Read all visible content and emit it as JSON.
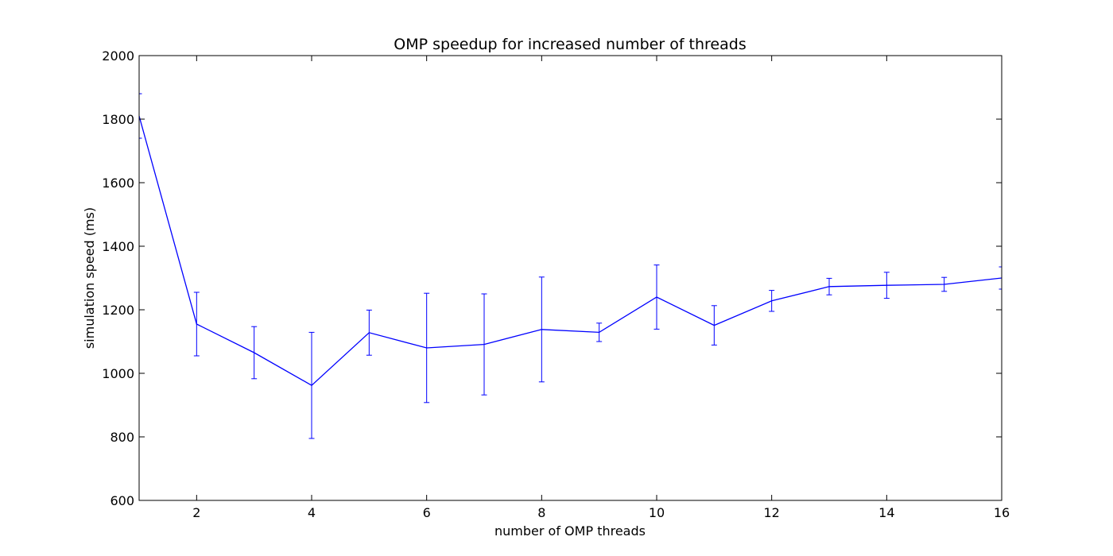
{
  "chart_data": {
    "type": "line",
    "title": "OMP speedup for increased number of threads",
    "xlabel": "number of OMP threads",
    "ylabel": "simulation speed (ms)",
    "xlim": [
      1,
      16
    ],
    "ylim": [
      600,
      2000
    ],
    "xticks": [
      2,
      4,
      6,
      8,
      10,
      12,
      14,
      16
    ],
    "yticks": [
      600,
      800,
      1000,
      1200,
      1400,
      1600,
      1800,
      2000
    ],
    "grid": false,
    "line_color": "#0000ff",
    "series": [
      {
        "x": [
          1,
          2,
          3,
          4,
          5,
          6,
          7,
          8,
          9,
          10,
          11,
          12,
          13,
          14,
          15,
          16
        ],
        "y": [
          1810,
          1155,
          1065,
          962,
          1128,
          1080,
          1091,
          1138,
          1129,
          1240,
          1151,
          1228,
          1273,
          1277,
          1280,
          1300
        ],
        "err": [
          70,
          100,
          82,
          167,
          71,
          172,
          159,
          165,
          29,
          101,
          62,
          33,
          26,
          41,
          22,
          35
        ]
      }
    ]
  }
}
